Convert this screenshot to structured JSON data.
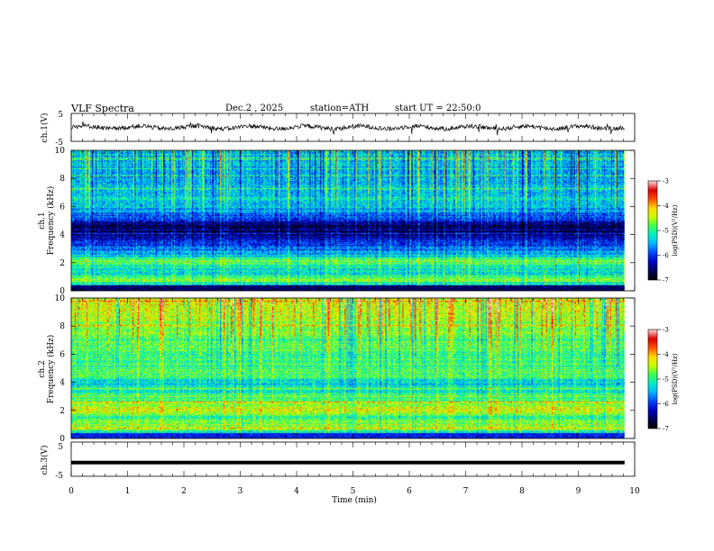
{
  "header": {
    "title": "VLF Spectra",
    "date": "Dec.2 , 2025",
    "station": "station=ATH",
    "start_ut": "start UT = 22:50:0"
  },
  "chart_data": [
    {
      "type": "line",
      "name": "ch1-waveform",
      "ylabel": "ch.1(V)",
      "ylim": [
        -5,
        5
      ],
      "yticks": [
        "5",
        "-5"
      ],
      "description_units": "V"
    },
    {
      "type": "heatmap",
      "name": "ch1-spectrogram",
      "ylabel_top": "ch.1",
      "ylabel": "Frequency (kHz)",
      "ylim": [
        0,
        10
      ],
      "yticks": [
        "0",
        "2",
        "4",
        "6",
        "8",
        "10"
      ],
      "colorbar": {
        "label": "log(PSD)(V²/Hz)",
        "range": [
          -7,
          -3
        ],
        "ticks": [
          "-3",
          "-4",
          "-5",
          "-6",
          "-7"
        ]
      },
      "bands_khz": [
        {
          "f": 0.0,
          "level": -6.8
        },
        {
          "f": 0.7,
          "level": -4.6
        },
        {
          "f": 1.2,
          "level": -5.4
        },
        {
          "f": 2.1,
          "level": -4.8
        },
        {
          "f": 2.6,
          "level": -5.5
        },
        {
          "f": 4.0,
          "level": -6.6
        },
        {
          "f": 4.6,
          "level": -6.7
        },
        {
          "f": 5.4,
          "level": -5.8
        },
        {
          "f": 6.5,
          "level": -5.2
        },
        {
          "f": 8.0,
          "level": -5.6
        },
        {
          "f": 10.0,
          "level": -5.4
        }
      ]
    },
    {
      "type": "heatmap",
      "name": "ch2-spectrogram",
      "ylabel_top": "ch.2",
      "ylabel": "Frequency (kHz)",
      "ylim": [
        0,
        10
      ],
      "yticks": [
        "0",
        "2",
        "4",
        "6",
        "8",
        "10"
      ],
      "colorbar": {
        "label": "log(PSD)(V²/Hz)",
        "range": [
          -7,
          -3
        ],
        "ticks": [
          "-3",
          "-4",
          "-5",
          "-6",
          "-7"
        ]
      },
      "bands_khz": [
        {
          "f": 0.0,
          "level": -6.0
        },
        {
          "f": 0.7,
          "level": -4.6
        },
        {
          "f": 1.5,
          "level": -5.0
        },
        {
          "f": 2.0,
          "level": -4.3
        },
        {
          "f": 3.0,
          "level": -5.0
        },
        {
          "f": 4.0,
          "level": -5.3
        },
        {
          "f": 4.5,
          "level": -4.8
        },
        {
          "f": 5.5,
          "level": -5.0
        },
        {
          "f": 6.5,
          "level": -4.9
        },
        {
          "f": 8.0,
          "level": -4.6
        },
        {
          "f": 10.0,
          "level": -4.3
        }
      ]
    },
    {
      "type": "line",
      "name": "ch3-waveform",
      "ylabel": "ch.3(V)",
      "ylim": [
        -5,
        5
      ],
      "yticks": [
        "5",
        "-5"
      ],
      "level_v": -1.0
    }
  ],
  "xaxis": {
    "label": "Time (min)",
    "xlim": [
      0,
      10
    ],
    "ticks": [
      "0",
      "1",
      "2",
      "3",
      "4",
      "5",
      "6",
      "7",
      "8",
      "9",
      "10"
    ],
    "data_end_min": 9.82
  },
  "colors": {
    "frame": "#000000",
    "palette": [
      "#000000",
      "#00005a",
      "#0000c8",
      "#0046ff",
      "#00b4ff",
      "#00f0c8",
      "#3cff50",
      "#c8ff00",
      "#ffdc00",
      "#ff5000",
      "#dc0000",
      "#ffd2d2"
    ]
  }
}
